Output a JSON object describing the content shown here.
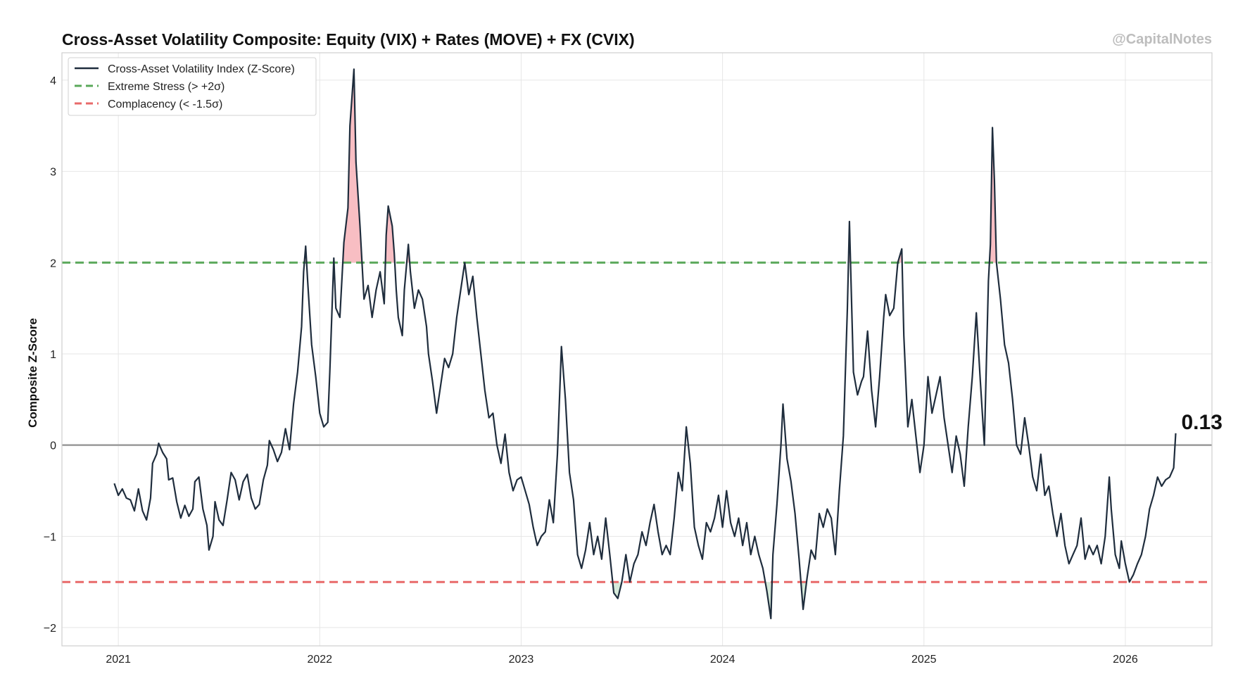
{
  "chart_data": {
    "type": "line",
    "title": "Cross-Asset Volatility Composite: Equity (VIX) + Rates (MOVE) + FX (CVIX)",
    "watermark": "@CapitalNotes",
    "xlabel": "",
    "ylabel": "Composite Z-Score",
    "xlim": [
      2020.72,
      2026.43
    ],
    "ylim": [
      -2.2,
      4.3
    ],
    "x_ticks": [
      2021,
      2022,
      2023,
      2024,
      2025,
      2026
    ],
    "x_tick_labels": [
      "2021",
      "2022",
      "2023",
      "2024",
      "2025",
      "2026"
    ],
    "y_ticks": [
      -2,
      -1,
      0,
      1,
      2,
      3,
      4
    ],
    "y_tick_labels": [
      "−2",
      "−1",
      "0",
      "1",
      "2",
      "3",
      "4"
    ],
    "grid": true,
    "legend_position": "top-left",
    "legend": [
      {
        "label": "Cross-Asset Volatility Index (Z-Score)",
        "color": "#1f2d3d",
        "style": "solid"
      },
      {
        "label": "Extreme Stress (> +2σ)",
        "color": "#5aa85a",
        "style": "dashed"
      },
      {
        "label": "Complacency (< -1.5σ)",
        "color": "#e86a6a",
        "style": "dashed"
      }
    ],
    "reference_lines": [
      {
        "name": "extreme-stress",
        "y": 2,
        "color": "#5aa85a"
      },
      {
        "name": "complacency",
        "y": -1.5,
        "color": "#e86a6a"
      },
      {
        "name": "zero",
        "y": 0,
        "color": "#9a9a9a"
      }
    ],
    "fills": {
      "stress_color": "#f7b3b8",
      "complacency_color": "#cfe6d4"
    },
    "last_value_label": "0.13",
    "series": [
      {
        "name": "Cross-Asset Volatility Index (Z-Score)",
        "color": "#1f2d3d",
        "points": [
          [
            2020.98,
            -0.42
          ],
          [
            2021.0,
            -0.55
          ],
          [
            2021.02,
            -0.48
          ],
          [
            2021.04,
            -0.58
          ],
          [
            2021.06,
            -0.6
          ],
          [
            2021.08,
            -0.72
          ],
          [
            2021.1,
            -0.48
          ],
          [
            2021.12,
            -0.72
          ],
          [
            2021.14,
            -0.82
          ],
          [
            2021.16,
            -0.58
          ],
          [
            2021.17,
            -0.2
          ],
          [
            2021.19,
            -0.1
          ],
          [
            2021.2,
            0.02
          ],
          [
            2021.22,
            -0.08
          ],
          [
            2021.24,
            -0.15
          ],
          [
            2021.25,
            -0.38
          ],
          [
            2021.27,
            -0.36
          ],
          [
            2021.29,
            -0.62
          ],
          [
            2021.31,
            -0.8
          ],
          [
            2021.33,
            -0.66
          ],
          [
            2021.35,
            -0.78
          ],
          [
            2021.37,
            -0.7
          ],
          [
            2021.38,
            -0.4
          ],
          [
            2021.4,
            -0.35
          ],
          [
            2021.42,
            -0.7
          ],
          [
            2021.44,
            -0.88
          ],
          [
            2021.45,
            -1.15
          ],
          [
            2021.47,
            -1.0
          ],
          [
            2021.48,
            -0.62
          ],
          [
            2021.5,
            -0.82
          ],
          [
            2021.52,
            -0.88
          ],
          [
            2021.54,
            -0.6
          ],
          [
            2021.56,
            -0.3
          ],
          [
            2021.58,
            -0.38
          ],
          [
            2021.6,
            -0.6
          ],
          [
            2021.62,
            -0.4
          ],
          [
            2021.64,
            -0.32
          ],
          [
            2021.66,
            -0.58
          ],
          [
            2021.68,
            -0.7
          ],
          [
            2021.7,
            -0.65
          ],
          [
            2021.72,
            -0.38
          ],
          [
            2021.74,
            -0.22
          ],
          [
            2021.75,
            0.05
          ],
          [
            2021.77,
            -0.05
          ],
          [
            2021.79,
            -0.18
          ],
          [
            2021.81,
            -0.08
          ],
          [
            2021.83,
            0.18
          ],
          [
            2021.85,
            -0.05
          ],
          [
            2021.87,
            0.45
          ],
          [
            2021.89,
            0.8
          ],
          [
            2021.91,
            1.3
          ],
          [
            2021.92,
            1.9
          ],
          [
            2021.93,
            2.18
          ],
          [
            2021.94,
            1.8
          ],
          [
            2021.96,
            1.1
          ],
          [
            2021.98,
            0.75
          ],
          [
            2022.0,
            0.35
          ],
          [
            2022.02,
            0.2
          ],
          [
            2022.04,
            0.25
          ],
          [
            2022.05,
            0.8
          ],
          [
            2022.07,
            2.05
          ],
          [
            2022.08,
            1.5
          ],
          [
            2022.1,
            1.4
          ],
          [
            2022.12,
            2.22
          ],
          [
            2022.14,
            2.6
          ],
          [
            2022.15,
            3.5
          ],
          [
            2022.17,
            4.12
          ],
          [
            2022.18,
            3.1
          ],
          [
            2022.2,
            2.4
          ],
          [
            2022.22,
            1.6
          ],
          [
            2022.24,
            1.75
          ],
          [
            2022.26,
            1.4
          ],
          [
            2022.28,
            1.7
          ],
          [
            2022.3,
            1.9
          ],
          [
            2022.32,
            1.55
          ],
          [
            2022.33,
            2.3
          ],
          [
            2022.34,
            2.62
          ],
          [
            2022.36,
            2.4
          ],
          [
            2022.37,
            2.1
          ],
          [
            2022.38,
            1.7
          ],
          [
            2022.39,
            1.4
          ],
          [
            2022.41,
            1.2
          ],
          [
            2022.42,
            1.7
          ],
          [
            2022.44,
            2.2
          ],
          [
            2022.45,
            1.9
          ],
          [
            2022.47,
            1.5
          ],
          [
            2022.49,
            1.7
          ],
          [
            2022.51,
            1.6
          ],
          [
            2022.53,
            1.3
          ],
          [
            2022.54,
            1.0
          ],
          [
            2022.56,
            0.7
          ],
          [
            2022.58,
            0.35
          ],
          [
            2022.6,
            0.65
          ],
          [
            2022.62,
            0.95
          ],
          [
            2022.64,
            0.85
          ],
          [
            2022.66,
            1.0
          ],
          [
            2022.68,
            1.4
          ],
          [
            2022.7,
            1.7
          ],
          [
            2022.72,
            2.0
          ],
          [
            2022.74,
            1.65
          ],
          [
            2022.76,
            1.85
          ],
          [
            2022.78,
            1.4
          ],
          [
            2022.8,
            1.0
          ],
          [
            2022.82,
            0.6
          ],
          [
            2022.84,
            0.3
          ],
          [
            2022.86,
            0.35
          ],
          [
            2022.88,
            0.0
          ],
          [
            2022.9,
            -0.2
          ],
          [
            2022.92,
            0.12
          ],
          [
            2022.94,
            -0.3
          ],
          [
            2022.96,
            -0.5
          ],
          [
            2022.98,
            -0.38
          ],
          [
            2023.0,
            -0.35
          ],
          [
            2023.02,
            -0.5
          ],
          [
            2023.04,
            -0.65
          ],
          [
            2023.06,
            -0.9
          ],
          [
            2023.08,
            -1.1
          ],
          [
            2023.1,
            -1.0
          ],
          [
            2023.12,
            -0.95
          ],
          [
            2023.14,
            -0.6
          ],
          [
            2023.16,
            -0.85
          ],
          [
            2023.18,
            -0.1
          ],
          [
            2023.2,
            1.08
          ],
          [
            2023.22,
            0.5
          ],
          [
            2023.24,
            -0.3
          ],
          [
            2023.26,
            -0.6
          ],
          [
            2023.28,
            -1.2
          ],
          [
            2023.3,
            -1.35
          ],
          [
            2023.32,
            -1.15
          ],
          [
            2023.34,
            -0.85
          ],
          [
            2023.36,
            -1.2
          ],
          [
            2023.38,
            -1.0
          ],
          [
            2023.4,
            -1.25
          ],
          [
            2023.42,
            -0.8
          ],
          [
            2023.44,
            -1.2
          ],
          [
            2023.46,
            -1.62
          ],
          [
            2023.48,
            -1.68
          ],
          [
            2023.5,
            -1.5
          ],
          [
            2023.52,
            -1.2
          ],
          [
            2023.54,
            -1.5
          ],
          [
            2023.56,
            -1.3
          ],
          [
            2023.58,
            -1.2
          ],
          [
            2023.6,
            -0.95
          ],
          [
            2023.62,
            -1.1
          ],
          [
            2023.64,
            -0.85
          ],
          [
            2023.66,
            -0.65
          ],
          [
            2023.68,
            -0.95
          ],
          [
            2023.7,
            -1.2
          ],
          [
            2023.72,
            -1.1
          ],
          [
            2023.74,
            -1.2
          ],
          [
            2023.76,
            -0.8
          ],
          [
            2023.78,
            -0.3
          ],
          [
            2023.8,
            -0.5
          ],
          [
            2023.82,
            0.2
          ],
          [
            2023.84,
            -0.2
          ],
          [
            2023.86,
            -0.9
          ],
          [
            2023.88,
            -1.1
          ],
          [
            2023.9,
            -1.25
          ],
          [
            2023.92,
            -0.85
          ],
          [
            2023.94,
            -0.95
          ],
          [
            2023.96,
            -0.8
          ],
          [
            2023.98,
            -0.55
          ],
          [
            2024.0,
            -0.9
          ],
          [
            2024.02,
            -0.5
          ],
          [
            2024.04,
            -0.85
          ],
          [
            2024.06,
            -1.0
          ],
          [
            2024.08,
            -0.8
          ],
          [
            2024.1,
            -1.1
          ],
          [
            2024.12,
            -0.85
          ],
          [
            2024.14,
            -1.2
          ],
          [
            2024.16,
            -1.0
          ],
          [
            2024.18,
            -1.2
          ],
          [
            2024.2,
            -1.35
          ],
          [
            2024.22,
            -1.6
          ],
          [
            2024.24,
            -1.9
          ],
          [
            2024.25,
            -1.2
          ],
          [
            2024.27,
            -0.65
          ],
          [
            2024.29,
            0.0
          ],
          [
            2024.3,
            0.45
          ],
          [
            2024.32,
            -0.15
          ],
          [
            2024.34,
            -0.4
          ],
          [
            2024.36,
            -0.75
          ],
          [
            2024.38,
            -1.25
          ],
          [
            2024.4,
            -1.8
          ],
          [
            2024.42,
            -1.45
          ],
          [
            2024.44,
            -1.15
          ],
          [
            2024.46,
            -1.25
          ],
          [
            2024.48,
            -0.75
          ],
          [
            2024.5,
            -0.9
          ],
          [
            2024.52,
            -0.7
          ],
          [
            2024.54,
            -0.8
          ],
          [
            2024.56,
            -1.2
          ],
          [
            2024.58,
            -0.5
          ],
          [
            2024.6,
            0.1
          ],
          [
            2024.62,
            1.5
          ],
          [
            2024.63,
            2.45
          ],
          [
            2024.65,
            0.8
          ],
          [
            2024.67,
            0.55
          ],
          [
            2024.69,
            0.7
          ],
          [
            2024.7,
            0.75
          ],
          [
            2024.72,
            1.25
          ],
          [
            2024.74,
            0.6
          ],
          [
            2024.76,
            0.2
          ],
          [
            2024.78,
            0.75
          ],
          [
            2024.8,
            1.4
          ],
          [
            2024.81,
            1.65
          ],
          [
            2024.83,
            1.42
          ],
          [
            2024.85,
            1.5
          ],
          [
            2024.87,
            2.0
          ],
          [
            2024.89,
            2.15
          ],
          [
            2024.9,
            1.2
          ],
          [
            2024.92,
            0.2
          ],
          [
            2024.94,
            0.5
          ],
          [
            2024.96,
            0.1
          ],
          [
            2024.98,
            -0.3
          ],
          [
            2025.0,
            0.0
          ],
          [
            2025.02,
            0.75
          ],
          [
            2025.04,
            0.35
          ],
          [
            2025.06,
            0.55
          ],
          [
            2025.08,
            0.75
          ],
          [
            2025.1,
            0.3
          ],
          [
            2025.12,
            0.0
          ],
          [
            2025.14,
            -0.3
          ],
          [
            2025.16,
            0.1
          ],
          [
            2025.18,
            -0.1
          ],
          [
            2025.2,
            -0.45
          ],
          [
            2025.22,
            0.2
          ],
          [
            2025.24,
            0.75
          ],
          [
            2025.26,
            1.45
          ],
          [
            2025.28,
            0.7
          ],
          [
            2025.3,
            0.0
          ],
          [
            2025.32,
            1.8
          ],
          [
            2025.33,
            2.2
          ],
          [
            2025.34,
            3.48
          ],
          [
            2025.35,
            2.9
          ],
          [
            2025.36,
            2.0
          ],
          [
            2025.38,
            1.6
          ],
          [
            2025.4,
            1.1
          ],
          [
            2025.42,
            0.9
          ],
          [
            2025.44,
            0.5
          ],
          [
            2025.46,
            0.0
          ],
          [
            2025.48,
            -0.1
          ],
          [
            2025.5,
            0.3
          ],
          [
            2025.52,
            0.0
          ],
          [
            2025.54,
            -0.35
          ],
          [
            2025.56,
            -0.5
          ],
          [
            2025.58,
            -0.1
          ],
          [
            2025.6,
            -0.55
          ],
          [
            2025.62,
            -0.45
          ],
          [
            2025.64,
            -0.75
          ],
          [
            2025.66,
            -1.0
          ],
          [
            2025.68,
            -0.75
          ],
          [
            2025.7,
            -1.1
          ],
          [
            2025.72,
            -1.3
          ],
          [
            2025.74,
            -1.2
          ],
          [
            2025.76,
            -1.1
          ],
          [
            2025.78,
            -0.8
          ],
          [
            2025.8,
            -1.25
          ],
          [
            2025.82,
            -1.1
          ],
          [
            2025.84,
            -1.2
          ],
          [
            2025.86,
            -1.1
          ],
          [
            2025.88,
            -1.3
          ],
          [
            2025.9,
            -1.0
          ],
          [
            2025.92,
            -0.35
          ],
          [
            2025.93,
            -0.7
          ],
          [
            2025.95,
            -1.2
          ],
          [
            2025.97,
            -1.35
          ],
          [
            2025.98,
            -1.05
          ],
          [
            2026.0,
            -1.3
          ],
          [
            2026.02,
            -1.5
          ],
          [
            2026.04,
            -1.42
          ],
          [
            2026.06,
            -1.3
          ],
          [
            2026.08,
            -1.2
          ],
          [
            2026.1,
            -1.0
          ],
          [
            2026.12,
            -0.7
          ],
          [
            2026.14,
            -0.55
          ],
          [
            2026.16,
            -0.35
          ],
          [
            2026.18,
            -0.45
          ],
          [
            2026.2,
            -0.38
          ],
          [
            2026.22,
            -0.35
          ],
          [
            2026.24,
            -0.25
          ],
          [
            2026.25,
            0.13
          ]
        ]
      }
    ]
  }
}
